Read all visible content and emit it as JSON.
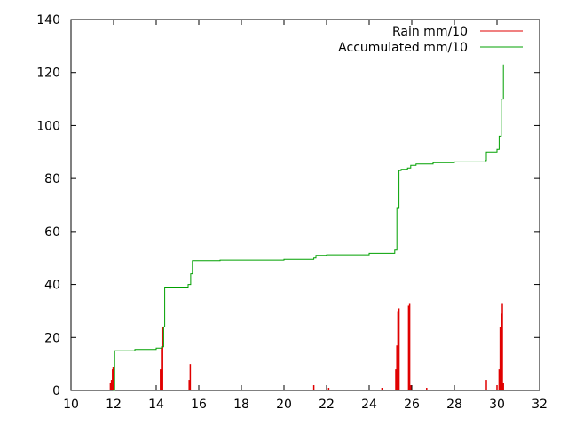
{
  "chart_data": {
    "type": "line",
    "title": "",
    "xlabel": "",
    "ylabel": "",
    "xlim": [
      10,
      32
    ],
    "ylim": [
      0,
      140
    ],
    "xticks": [
      "10",
      "12",
      "14",
      "16",
      "18",
      "20",
      "22",
      "24",
      "26",
      "28",
      "30",
      "32"
    ],
    "yticks": [
      "0",
      "20",
      "40",
      "60",
      "80",
      "100",
      "120",
      "140"
    ],
    "legend_position": "top-right",
    "series": [
      {
        "name": "Rain mm/10",
        "style": "impulses",
        "color": "#e00000",
        "x": [
          11.85,
          11.9,
          11.95,
          11.98,
          12.02,
          14.2,
          14.25,
          14.28,
          14.3,
          15.55,
          15.6,
          21.4,
          22.1,
          24.6,
          25.25,
          25.3,
          25.35,
          25.4,
          25.85,
          25.9,
          25.95,
          26.7,
          29.5,
          30.0,
          30.1,
          30.15,
          30.2,
          30.25,
          30.3
        ],
        "values": [
          3,
          4,
          8,
          9,
          4,
          8,
          16,
          24,
          24,
          4,
          10,
          2,
          1,
          1,
          8,
          17,
          30,
          31,
          32,
          33,
          2,
          1,
          4,
          2,
          8,
          24,
          29,
          33,
          3
        ]
      },
      {
        "name": "Accumulated mm/10",
        "style": "steps",
        "color": "#00a000",
        "x": [
          11.98,
          12.05,
          13.0,
          14.0,
          14.25,
          14.35,
          14.4,
          15.5,
          15.62,
          15.7,
          17.0,
          20.0,
          21.4,
          21.5,
          22.0,
          24.0,
          25.2,
          25.3,
          25.4,
          25.5,
          25.8,
          25.95,
          26.2,
          27.0,
          28.0,
          29.45,
          29.5,
          30.0,
          30.1,
          30.2,
          30.3
        ],
        "values": [
          0,
          15,
          15.5,
          16,
          16.5,
          24,
          39,
          40,
          44,
          49,
          49.2,
          49.5,
          50,
          51,
          51.2,
          51.8,
          53,
          69,
          83,
          83.5,
          84,
          85,
          85.5,
          86,
          86.3,
          86.8,
          90,
          91,
          96,
          110,
          123
        ]
      }
    ]
  }
}
